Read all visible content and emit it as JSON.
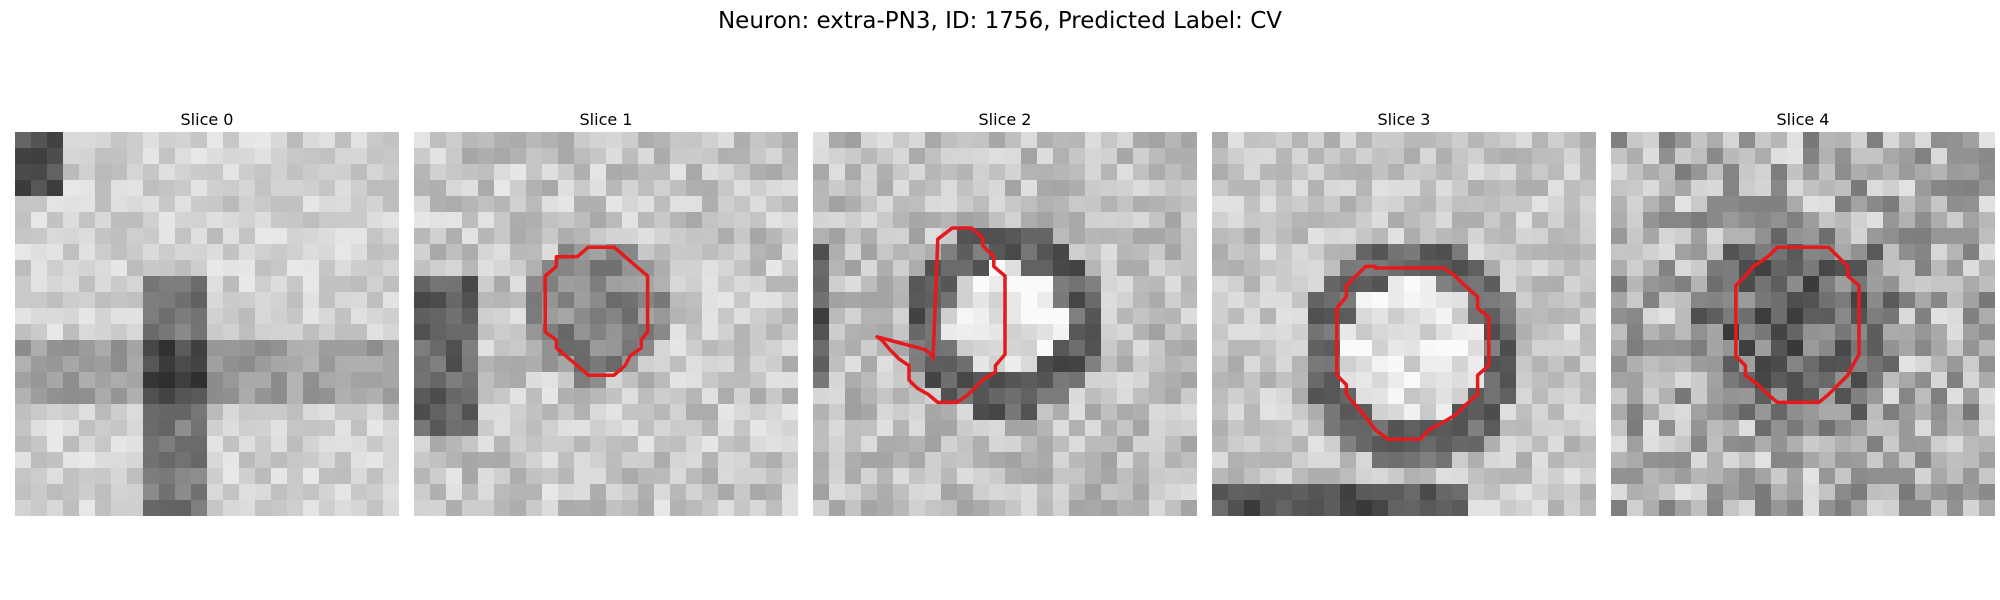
{
  "figure": {
    "title": "Neuron: extra-PN3, ID: 1756, Predicted Label: CV"
  },
  "slices": [
    {
      "title": "Slice 0",
      "has_contour": false
    },
    {
      "title": "Slice 1",
      "has_contour": true
    },
    {
      "title": "Slice 2",
      "has_contour": true
    },
    {
      "title": "Slice 3",
      "has_contour": true
    },
    {
      "title": "Slice 4",
      "has_contour": true
    }
  ],
  "style": {
    "contour_color": "#e41a1c",
    "colormap": "gray"
  }
}
